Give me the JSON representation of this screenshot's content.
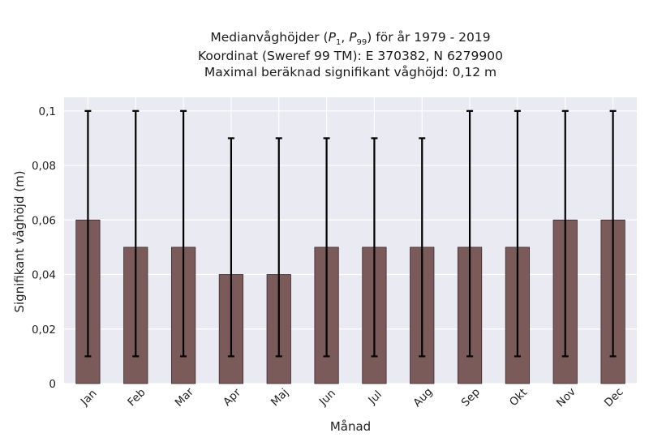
{
  "chart_data": {
    "type": "bar",
    "title_lines": [
      "Medianvåghöjder (P1, P99) för år 1979 - 2019",
      "Koordinat (Sweref 99 TM): E 370382, N 6279900",
      "Maximal beräknad signifikant våghöjd: 0,12 m"
    ],
    "title_main": "Medianvåghöjder (",
    "title_p1": "P",
    "title_p1_sub": "1",
    "title_sep": ", ",
    "title_p99": "P",
    "title_p99_sub": "99",
    "title_tail": ") för år 1979 - 2019",
    "xlabel": "Månad",
    "ylabel": "Signifikant våghöjd (m)",
    "categories": [
      "Jan",
      "Feb",
      "Mar",
      "Apr",
      "Maj",
      "Jun",
      "Jul",
      "Aug",
      "Sep",
      "Okt",
      "Nov",
      "Dec"
    ],
    "values": [
      0.06,
      0.05,
      0.05,
      0.04,
      0.04,
      0.05,
      0.05,
      0.05,
      0.05,
      0.05,
      0.06,
      0.06
    ],
    "p1": [
      0.01,
      0.01,
      0.01,
      0.01,
      0.01,
      0.01,
      0.01,
      0.01,
      0.01,
      0.01,
      0.01,
      0.01
    ],
    "p99": [
      0.1,
      0.1,
      0.1,
      0.09,
      0.09,
      0.09,
      0.09,
      0.09,
      0.1,
      0.1,
      0.1,
      0.1
    ],
    "ylim": [
      0,
      0.105
    ],
    "yticks": [
      0,
      0.02,
      0.04,
      0.06,
      0.08,
      0.1
    ],
    "ytick_labels": [
      "0",
      "0,02",
      "0,04",
      "0,06",
      "0,08",
      "0,1"
    ],
    "grid": true,
    "colors": {
      "bar": "#7b5a5a",
      "bar_edge": "#3a2a2a",
      "errorbar": "#000000",
      "plot_bg": "#eaeaf2",
      "grid": "#ffffff"
    }
  }
}
